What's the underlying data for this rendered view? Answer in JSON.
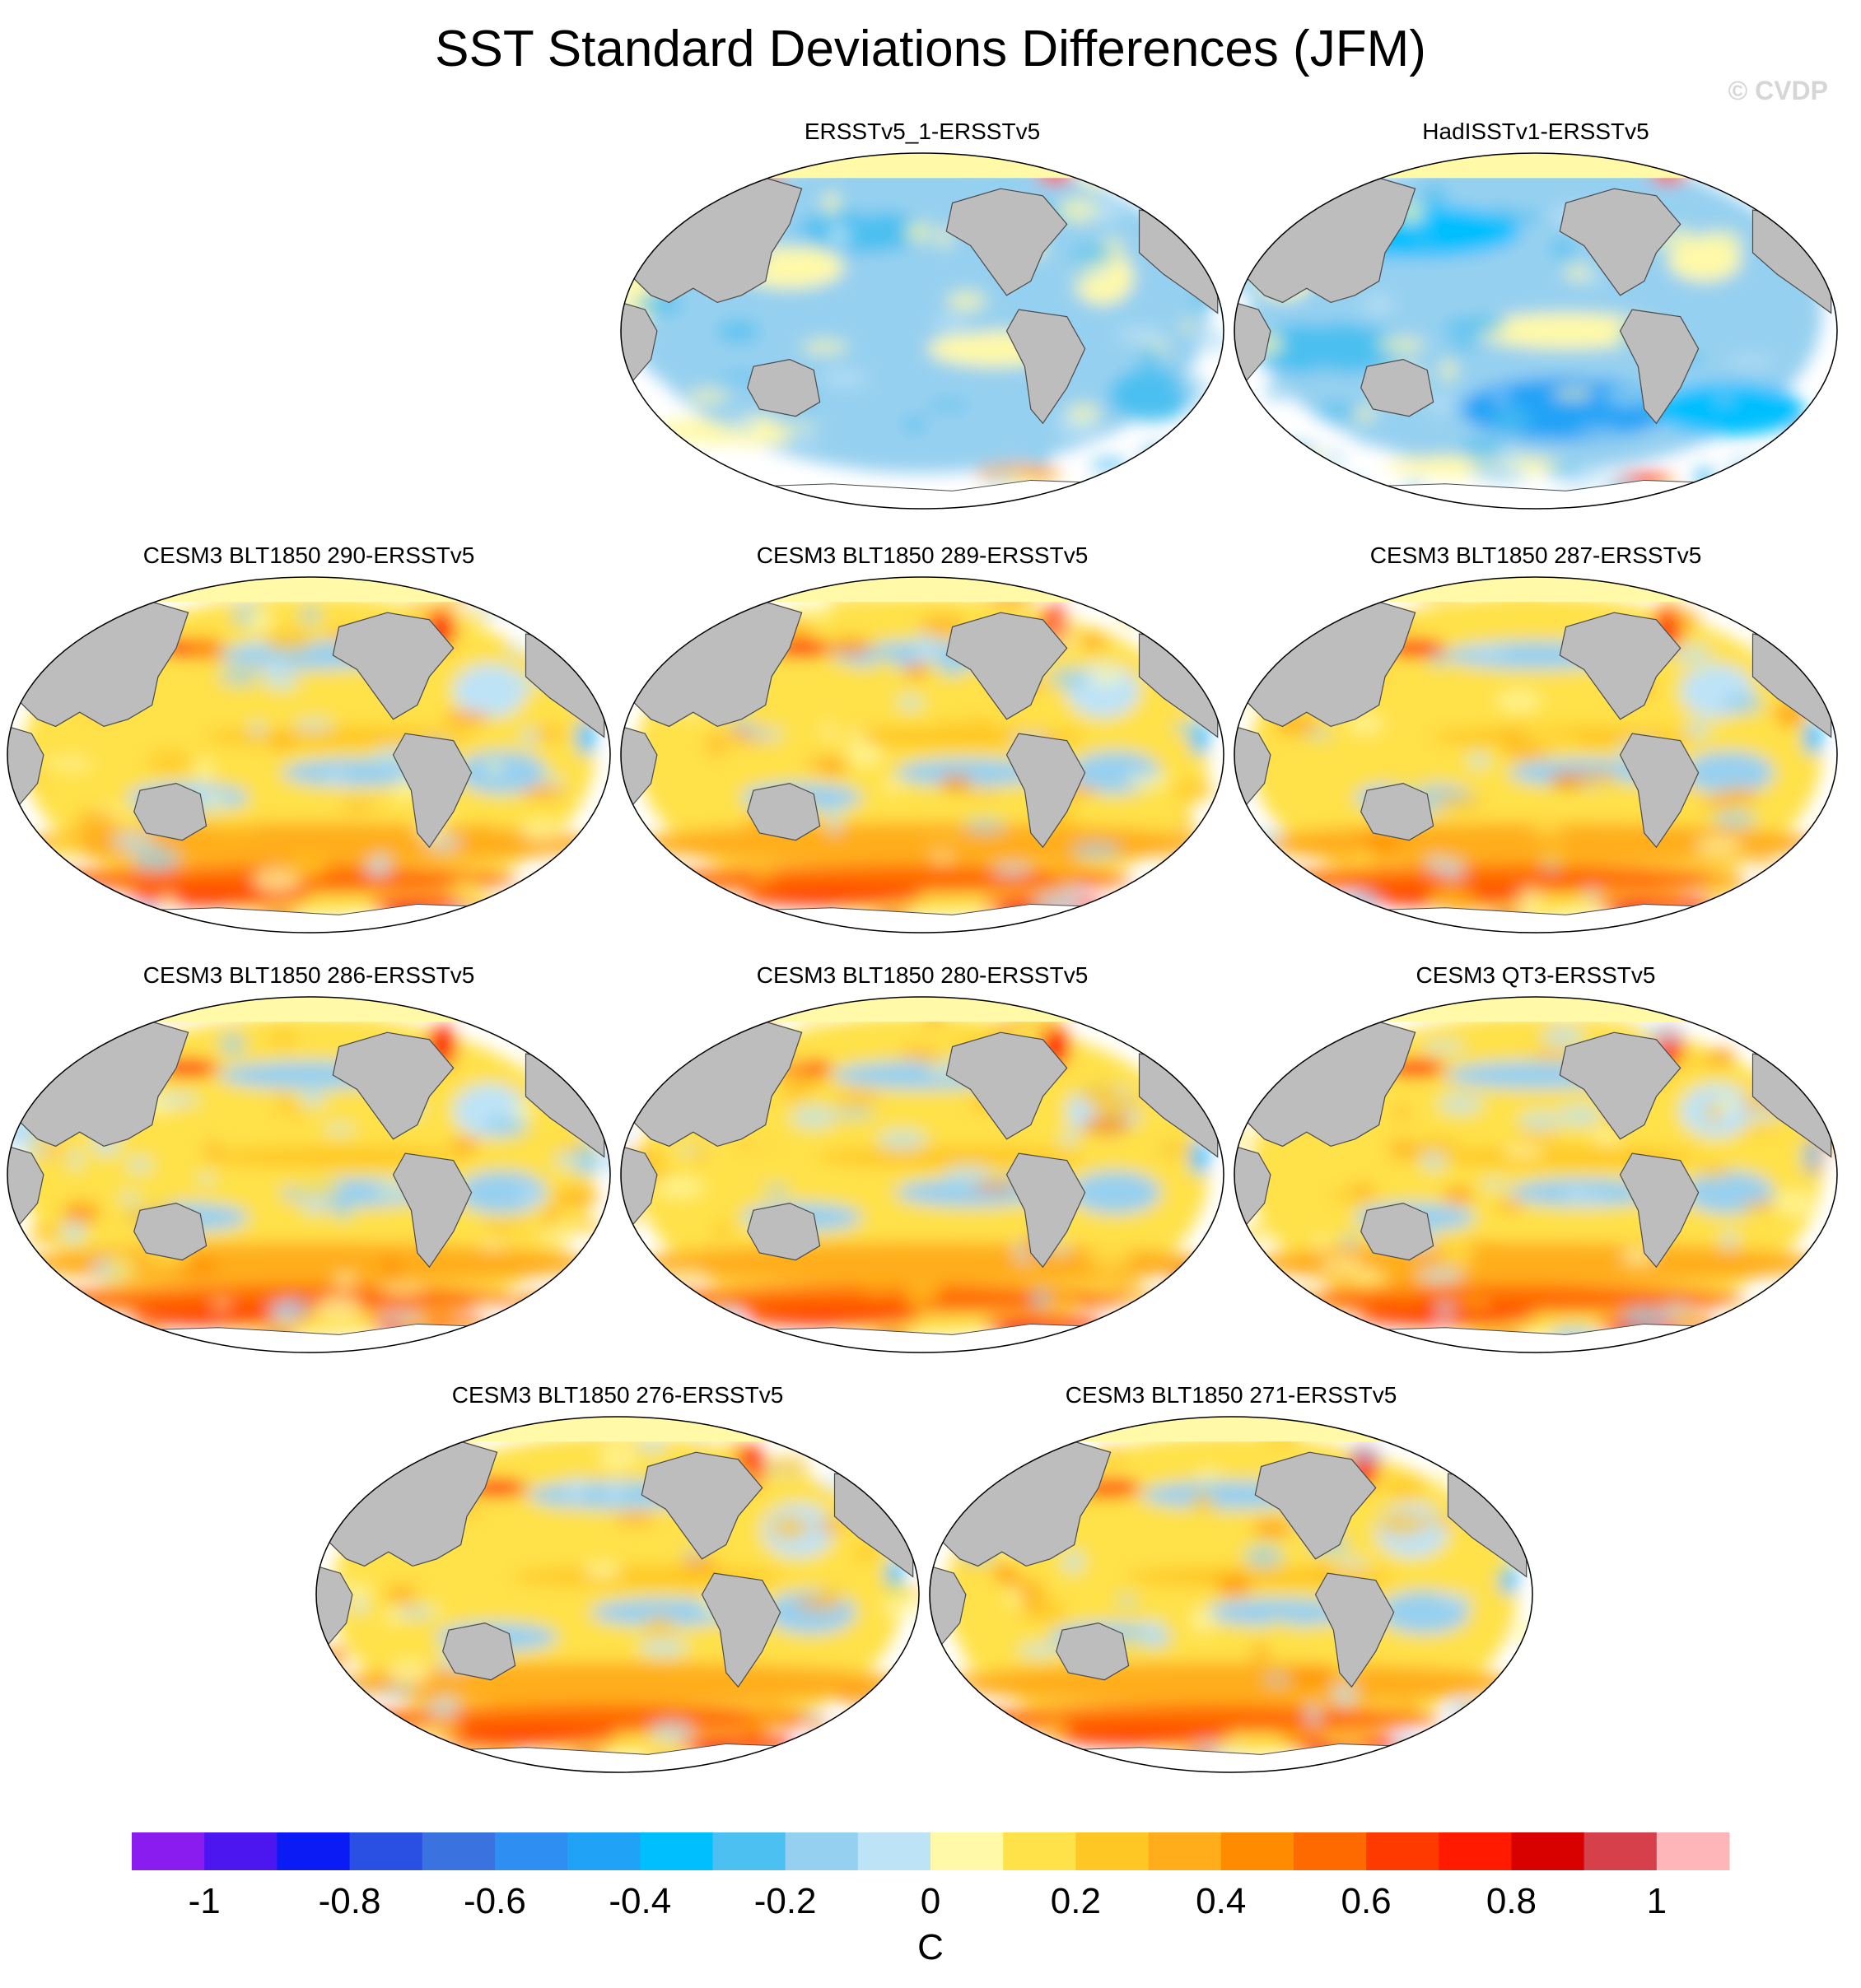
{
  "title": "SST Standard Deviations Differences (JFM)",
  "copyright": "© CVDP",
  "colors": {
    "land": "#bdbdbd",
    "land_outline": "#4a4a4a",
    "arctic_ice": "#fff9a8",
    "antarctica": "#ffffff"
  },
  "chart_data": {
    "type": "heatmap",
    "projection": "Robinson (global, Pacific-centered)",
    "variable": "SST standard deviation difference",
    "season": "JFM",
    "units": "C",
    "colorbar": {
      "levels": [
        -1.1,
        -1.0,
        -0.9,
        -0.8,
        -0.7,
        -0.6,
        -0.5,
        -0.4,
        -0.3,
        -0.2,
        -0.1,
        0,
        0.1,
        0.2,
        0.3,
        0.4,
        0.5,
        0.6,
        0.7,
        0.8,
        0.9,
        1.0,
        1.1
      ],
      "colors": [
        "#8a1cf0",
        "#4b16f0",
        "#0a1bf5",
        "#2a4fe3",
        "#3a73e0",
        "#2f8ef2",
        "#20a3f7",
        "#00bfff",
        "#4cc0f0",
        "#96d0f0",
        "#bde3f7",
        "#fff9a8",
        "#ffe14a",
        "#ffc724",
        "#ffad1a",
        "#ff8c00",
        "#ff6a00",
        "#ff3a00",
        "#ff1a00",
        "#d90000",
        "#d6404a",
        "#ffb6b9"
      ],
      "tick_labels": [
        "-1",
        "-0.8",
        "-0.6",
        "-0.4",
        "-0.2",
        "0",
        "0.2",
        "0.4",
        "0.6",
        "0.8",
        "1"
      ],
      "tick_values": [
        -1,
        -0.8,
        -0.6,
        -0.4,
        -0.2,
        0,
        0.2,
        0.4,
        0.6,
        0.8,
        1
      ],
      "label": "C"
    },
    "panels": [
      {
        "title": "ERSSTv5_1-ERSSTv5",
        "pattern": "obs-small"
      },
      {
        "title": "HadISSTv1-ERSSTv5",
        "pattern": "obs-neg"
      },
      {
        "title": "CESM3 BLT1850 290-ERSSTv5",
        "pattern": "model"
      },
      {
        "title": "CESM3 BLT1850 289-ERSSTv5",
        "pattern": "model"
      },
      {
        "title": "CESM3 BLT1850 287-ERSSTv5",
        "pattern": "model"
      },
      {
        "title": "CESM3 BLT1850 286-ERSSTv5",
        "pattern": "model"
      },
      {
        "title": "CESM3 BLT1850 280-ERSSTv5",
        "pattern": "model"
      },
      {
        "title": "CESM3 QT3-ERSSTv5",
        "pattern": "model"
      },
      {
        "title": "CESM3 BLT1850 276-ERSSTv5",
        "pattern": "model"
      },
      {
        "title": "CESM3 BLT1850 271-ERSSTv5",
        "pattern": "model"
      }
    ]
  }
}
